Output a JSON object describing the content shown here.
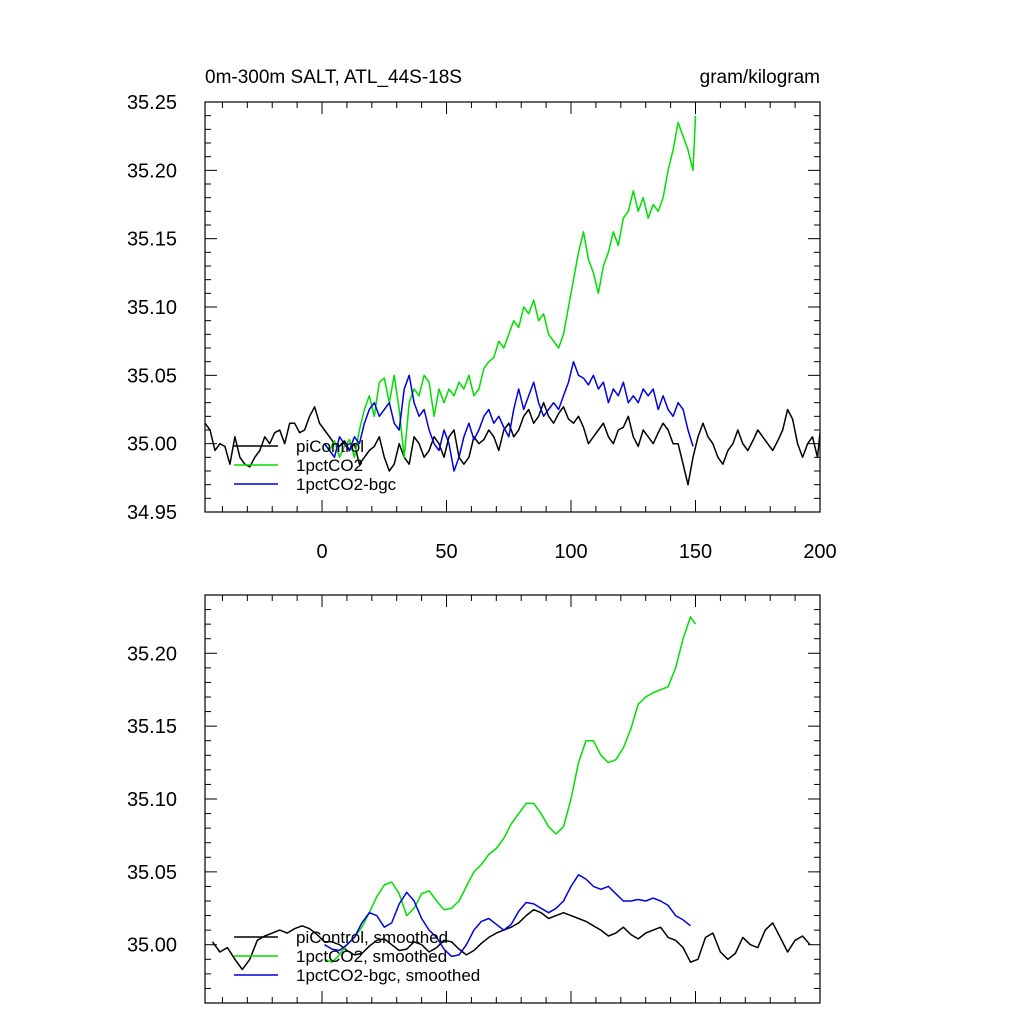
{
  "chart_data": [
    {
      "type": "line",
      "title_left": "0m-300m SALT, ATL_44S-18S",
      "title_right": "gram/kilogram",
      "xlabel": "",
      "ylabel": "",
      "xlim": [
        -47,
        200
      ],
      "ylim": [
        34.95,
        35.25
      ],
      "x_ticks": [
        0,
        50,
        100,
        150,
        200
      ],
      "y_ticks": [
        34.95,
        35.0,
        35.05,
        35.1,
        35.15,
        35.2,
        35.25
      ],
      "y_tick_labels": [
        "34.95",
        "35.00",
        "35.05",
        "35.10",
        "35.15",
        "35.20",
        "35.25"
      ],
      "x_tick_labels": [
        "0",
        "50",
        "100",
        "150",
        "200"
      ],
      "grid": false,
      "legend_position": "bottom-left",
      "series": [
        {
          "name": "piControl",
          "color": "#000000",
          "x": [
            -47,
            -45,
            -43,
            -41,
            -39,
            -37,
            -35,
            -33,
            -31,
            -29,
            -27,
            -25,
            -23,
            -21,
            -19,
            -17,
            -15,
            -13,
            -11,
            -9,
            -7,
            -5,
            -3,
            -1,
            1,
            3,
            5,
            7,
            9,
            11,
            13,
            15,
            17,
            19,
            21,
            23,
            25,
            27,
            29,
            31,
            33,
            35,
            37,
            39,
            41,
            43,
            45,
            47,
            49,
            51,
            53,
            55,
            57,
            59,
            61,
            63,
            65,
            67,
            69,
            71,
            73,
            75,
            77,
            79,
            81,
            83,
            85,
            87,
            89,
            91,
            93,
            95,
            97,
            99,
            101,
            103,
            105,
            107,
            109,
            111,
            113,
            115,
            117,
            119,
            121,
            123,
            125,
            127,
            129,
            131,
            133,
            135,
            137,
            139,
            141,
            143,
            145,
            147,
            149,
            151,
            153,
            155,
            157,
            159,
            161,
            163,
            165,
            167,
            169,
            171,
            173,
            175,
            177,
            179,
            181,
            183,
            185,
            187,
            189,
            191,
            193,
            195,
            197,
            199,
            200
          ],
          "values": [
            35.015,
            35.01,
            34.995,
            35.0,
            34.998,
            34.985,
            35.005,
            34.99,
            34.985,
            34.983,
            34.99,
            34.995,
            35.005,
            35.0,
            35.008,
            35.01,
            35.0,
            35.015,
            35.015,
            35.008,
            35.01,
            35.02,
            35.027,
            35.015,
            35.01,
            35.005,
            35.0,
            34.998,
            35.002,
            34.995,
            35.0,
            34.985,
            34.99,
            34.995,
            34.998,
            35.005,
            34.99,
            34.98,
            34.985,
            35.0,
            34.99,
            34.985,
            35.005,
            35.0,
            34.99,
            34.995,
            35.005,
            35.0,
            34.99,
            35.005,
            35.01,
            34.99,
            34.985,
            34.99,
            35.005,
            35.0,
            35.003,
            35.01,
            35.005,
            34.995,
            35.01,
            35.015,
            35.005,
            35.01,
            35.02,
            35.025,
            35.015,
            35.02,
            35.03,
            35.02,
            35.015,
            35.022,
            35.027,
            35.018,
            35.015,
            35.02,
            35.012,
            35.0,
            35.005,
            35.01,
            35.015,
            35.005,
            35.0,
            35.01,
            35.012,
            35.02,
            35.005,
            34.998,
            35.01,
            35.005,
            35.0,
            35.008,
            35.015,
            35.01,
            35.0,
            35.0,
            34.985,
            34.97,
            34.99,
            35.005,
            35.015,
            35.005,
            35.0,
            34.99,
            34.985,
            34.995,
            35.0,
            35.01,
            35.0,
            34.995,
            35.002,
            35.01,
            35.005,
            35.0,
            34.995,
            35.002,
            35.01,
            35.025,
            35.018,
            35.0,
            34.99,
            35.0,
            35.005,
            34.99,
            35.008
          ]
        },
        {
          "name": "1pctCO2",
          "color": "#00dd00",
          "x": [
            1,
            3,
            5,
            7,
            9,
            11,
            13,
            15,
            17,
            19,
            21,
            23,
            25,
            27,
            29,
            31,
            33,
            35,
            37,
            39,
            41,
            43,
            45,
            47,
            49,
            51,
            53,
            55,
            57,
            59,
            61,
            63,
            65,
            67,
            69,
            71,
            73,
            75,
            77,
            79,
            81,
            83,
            85,
            87,
            89,
            91,
            93,
            95,
            97,
            99,
            101,
            103,
            105,
            107,
            109,
            111,
            113,
            115,
            117,
            119,
            121,
            123,
            125,
            127,
            129,
            131,
            133,
            135,
            137,
            139,
            141,
            143,
            145,
            147,
            149,
            150
          ],
          "values": [
            35.0,
            34.995,
            35.002,
            34.99,
            34.998,
            35.003,
            34.99,
            35.01,
            35.025,
            35.035,
            35.02,
            35.045,
            35.048,
            35.03,
            35.05,
            35.025,
            34.99,
            35.03,
            35.04,
            35.035,
            35.05,
            35.045,
            35.02,
            35.04,
            35.03,
            35.04,
            35.035,
            35.045,
            35.04,
            35.05,
            35.035,
            35.04,
            35.055,
            35.06,
            35.063,
            35.075,
            35.07,
            35.08,
            35.09,
            35.085,
            35.1,
            35.095,
            35.105,
            35.09,
            35.095,
            35.08,
            35.075,
            35.07,
            35.08,
            35.1,
            35.12,
            35.14,
            35.155,
            35.135,
            35.125,
            35.11,
            35.13,
            35.14,
            35.155,
            35.145,
            35.165,
            35.17,
            35.185,
            35.17,
            35.18,
            35.165,
            35.175,
            35.17,
            35.18,
            35.2,
            35.215,
            35.235,
            35.225,
            35.215,
            35.2,
            35.24
          ]
        },
        {
          "name": "1pctCO2-bgc",
          "color": "#0000dd",
          "x": [
            1,
            3,
            5,
            7,
            9,
            11,
            13,
            15,
            17,
            19,
            21,
            23,
            25,
            27,
            29,
            31,
            33,
            35,
            37,
            39,
            41,
            43,
            45,
            47,
            49,
            51,
            53,
            55,
            57,
            59,
            61,
            63,
            65,
            67,
            69,
            71,
            73,
            75,
            77,
            79,
            81,
            83,
            85,
            87,
            89,
            91,
            93,
            95,
            97,
            99,
            101,
            103,
            105,
            107,
            109,
            111,
            113,
            115,
            117,
            119,
            121,
            123,
            125,
            127,
            129,
            131,
            133,
            135,
            137,
            139,
            141,
            143,
            145,
            147,
            149
          ],
          "values": [
            35.0,
            34.995,
            34.99,
            35.005,
            35.0,
            34.995,
            35.005,
            35.0,
            35.015,
            35.025,
            35.03,
            35.02,
            35.025,
            35.03,
            35.015,
            35.01,
            35.04,
            35.05,
            35.03,
            35.02,
            35.025,
            35.01,
            35.0,
            34.995,
            35.01,
            35.0,
            34.98,
            34.99,
            35.005,
            35.015,
            35.003,
            35.01,
            35.02,
            35.025,
            35.015,
            35.02,
            35.012,
            35.005,
            35.025,
            35.04,
            35.025,
            35.035,
            35.045,
            35.03,
            35.02,
            35.025,
            35.03,
            35.025,
            35.035,
            35.045,
            35.06,
            35.05,
            35.048,
            35.043,
            35.05,
            35.04,
            35.045,
            35.03,
            35.04,
            35.035,
            35.045,
            35.03,
            35.035,
            35.03,
            35.04,
            35.035,
            35.04,
            35.025,
            35.035,
            35.025,
            35.02,
            35.03,
            35.025,
            35.01,
            34.998
          ]
        }
      ]
    },
    {
      "type": "line",
      "title_left": "",
      "title_right": "",
      "xlabel": "",
      "ylabel": "",
      "xlim": [
        -47,
        200
      ],
      "ylim": [
        34.96,
        35.24
      ],
      "x_ticks": [
        0,
        50,
        100,
        150,
        200
      ],
      "y_ticks": [
        35.0,
        35.05,
        35.1,
        35.15,
        35.2
      ],
      "y_tick_labels": [
        "35.00",
        "35.05",
        "35.10",
        "35.15",
        "35.20"
      ],
      "x_tick_labels": [],
      "grid": false,
      "legend_position": "bottom-left",
      "series": [
        {
          "name": "piControl, smoothed",
          "color": "#000000",
          "x": [
            -44,
            -41,
            -38,
            -35,
            -32,
            -29,
            -26,
            -23,
            -20,
            -17,
            -14,
            -11,
            -8,
            -5,
            -2,
            1,
            4,
            7,
            10,
            13,
            16,
            19,
            22,
            25,
            28,
            31,
            34,
            37,
            40,
            43,
            46,
            49,
            52,
            55,
            58,
            61,
            64,
            67,
            70,
            73,
            76,
            79,
            82,
            85,
            88,
            91,
            94,
            97,
            100,
            103,
            106,
            109,
            112,
            115,
            118,
            121,
            124,
            127,
            130,
            133,
            136,
            139,
            142,
            145,
            148,
            151,
            154,
            157,
            160,
            163,
            166,
            169,
            172,
            175,
            178,
            181,
            184,
            187,
            190,
            193,
            196
          ],
          "values": [
            35.002,
            34.995,
            34.998,
            34.99,
            34.983,
            34.99,
            35.003,
            35.006,
            35.008,
            35.01,
            35.008,
            35.011,
            35.013,
            35.011,
            35.007,
            35.002,
            35.002,
            35.0,
            34.996,
            34.993,
            34.994,
            34.999,
            35.003,
            35.004,
            35.0,
            34.996,
            34.997,
            35.002,
            35.0,
            34.995,
            34.998,
            35.003,
            35.002,
            34.997,
            34.993,
            34.996,
            35.001,
            35.005,
            35.008,
            35.01,
            35.012,
            35.015,
            35.02,
            35.024,
            35.022,
            35.018,
            35.02,
            35.022,
            35.02,
            35.018,
            35.016,
            35.013,
            35.01,
            35.006,
            35.008,
            35.012,
            35.007,
            35.004,
            35.008,
            35.01,
            35.012,
            35.005,
            35.003,
            34.998,
            34.988,
            34.99,
            35.005,
            35.008,
            34.995,
            34.99,
            34.994,
            35.005,
            35.0,
            34.998,
            35.01,
            35.015,
            35.005,
            34.995,
            35.003,
            35.006,
            35.0
          ]
        },
        {
          "name": "1pctCO2, smoothed",
          "color": "#00dd00",
          "x": [
            1,
            4,
            7,
            10,
            13,
            16,
            19,
            22,
            25,
            28,
            31,
            34,
            37,
            40,
            43,
            46,
            49,
            52,
            55,
            58,
            61,
            64,
            67,
            70,
            73,
            76,
            79,
            82,
            85,
            88,
            91,
            94,
            97,
            100,
            103,
            106,
            109,
            112,
            115,
            118,
            121,
            124,
            127,
            130,
            133,
            136,
            139,
            142,
            145,
            148,
            150
          ],
          "values": [
            34.99,
            34.988,
            34.993,
            35.0,
            35.005,
            35.012,
            35.022,
            35.033,
            35.041,
            35.043,
            35.035,
            35.02,
            35.025,
            35.035,
            35.037,
            35.03,
            35.024,
            35.025,
            35.03,
            35.04,
            35.05,
            35.055,
            35.062,
            35.066,
            35.073,
            35.083,
            35.09,
            35.097,
            35.097,
            35.09,
            35.081,
            35.076,
            35.081,
            35.1,
            35.125,
            35.14,
            35.14,
            35.13,
            35.125,
            35.127,
            35.135,
            35.148,
            35.165,
            35.17,
            35.173,
            35.175,
            35.177,
            35.19,
            35.21,
            35.225,
            35.22
          ]
        },
        {
          "name": "1pctCO2-bgc, smoothed",
          "color": "#0000dd",
          "x": [
            1,
            4,
            7,
            10,
            13,
            16,
            19,
            22,
            25,
            28,
            31,
            34,
            37,
            40,
            43,
            46,
            49,
            52,
            55,
            58,
            61,
            64,
            67,
            70,
            73,
            76,
            79,
            82,
            85,
            88,
            91,
            94,
            97,
            100,
            103,
            106,
            109,
            112,
            115,
            118,
            121,
            124,
            127,
            130,
            133,
            136,
            139,
            142,
            145,
            148
          ],
          "values": [
            35.0,
            34.997,
            34.996,
            35.0,
            35.005,
            35.015,
            35.022,
            35.02,
            35.012,
            35.015,
            35.028,
            35.036,
            35.03,
            35.018,
            35.01,
            35.005,
            34.997,
            34.992,
            34.993,
            35.0,
            35.01,
            35.016,
            35.018,
            35.014,
            35.01,
            35.014,
            35.023,
            35.029,
            35.028,
            35.025,
            35.022,
            35.025,
            35.03,
            35.04,
            35.048,
            35.045,
            35.04,
            35.038,
            35.04,
            35.035,
            35.03,
            35.03,
            35.031,
            35.03,
            35.032,
            35.03,
            35.027,
            35.02,
            35.017,
            35.013
          ]
        }
      ]
    }
  ]
}
